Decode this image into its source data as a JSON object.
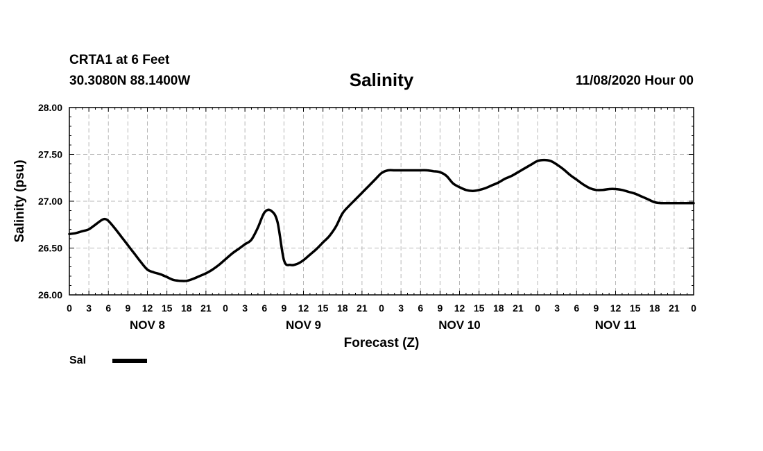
{
  "header": {
    "station": "CRTA1 at 6 Feet",
    "coords": "30.3080N 88.1400W",
    "datetime": "11/08/2020 Hour 00"
  },
  "chart_data": {
    "type": "line",
    "title": "Salinity",
    "xlabel": "Forecast (Z)",
    "ylabel": "Salinity (psu)",
    "ylim": [
      26.0,
      28.0
    ],
    "xlim_hours": [
      0,
      96
    ],
    "y_ticks": [
      "26.00",
      "26.50",
      "27.00",
      "27.50",
      "28.00"
    ],
    "y_tick_values": [
      26.0,
      26.5,
      27.0,
      27.5,
      28.0
    ],
    "x_tick_labels": [
      "0",
      "3",
      "6",
      "9",
      "12",
      "15",
      "18",
      "21",
      "0",
      "3",
      "6",
      "9",
      "12",
      "15",
      "18",
      "21",
      "0",
      "3",
      "6",
      "9",
      "12",
      "15",
      "18",
      "21",
      "0",
      "3",
      "6",
      "9",
      "12",
      "15",
      "18",
      "21",
      "0"
    ],
    "day_labels": [
      {
        "text": "NOV 8",
        "hour": 12
      },
      {
        "text": "NOV 9",
        "hour": 36
      },
      {
        "text": "NOV 10",
        "hour": 60
      },
      {
        "text": "NOV 11",
        "hour": 84
      }
    ],
    "grid": true,
    "legend": "bottom-left",
    "series": [
      {
        "name": "Sal",
        "color": "#000000",
        "x": [
          0,
          1,
          2,
          3,
          4,
          5,
          5.5,
          6,
          7,
          8,
          9,
          10,
          11,
          12,
          13,
          14,
          15,
          16,
          17,
          18,
          19,
          20,
          21,
          22,
          23,
          24,
          25,
          26,
          27,
          28,
          29,
          30,
          31,
          32,
          33,
          34,
          35,
          36,
          37,
          38,
          39,
          40,
          41,
          42,
          43,
          44,
          45,
          46,
          47,
          48,
          49,
          50,
          51,
          52,
          53,
          54,
          55,
          56,
          57,
          58,
          59,
          60,
          61,
          62,
          63,
          64,
          65,
          66,
          67,
          68,
          69,
          70,
          71,
          72,
          73,
          74,
          75,
          76,
          77,
          78,
          79,
          80,
          81,
          82,
          83,
          84,
          85,
          86,
          87,
          88,
          89,
          90,
          91,
          92,
          93,
          94,
          95,
          96
        ],
        "values": [
          26.65,
          26.66,
          26.68,
          26.7,
          26.75,
          26.8,
          26.81,
          26.79,
          26.71,
          26.62,
          26.53,
          26.44,
          26.35,
          26.27,
          26.24,
          26.22,
          26.19,
          26.16,
          26.15,
          26.15,
          26.17,
          26.2,
          26.23,
          26.27,
          26.32,
          26.38,
          26.44,
          26.49,
          26.54,
          26.59,
          26.72,
          26.88,
          26.9,
          26.78,
          26.37,
          26.32,
          26.33,
          26.37,
          26.43,
          26.49,
          26.56,
          26.63,
          26.73,
          26.87,
          26.95,
          27.02,
          27.09,
          27.16,
          27.23,
          27.3,
          27.33,
          27.33,
          27.33,
          27.33,
          27.33,
          27.33,
          27.33,
          27.32,
          27.31,
          27.27,
          27.19,
          27.15,
          27.12,
          27.11,
          27.12,
          27.14,
          27.17,
          27.2,
          27.24,
          27.27,
          27.31,
          27.35,
          27.39,
          27.43,
          27.44,
          27.43,
          27.39,
          27.34,
          27.28,
          27.23,
          27.18,
          27.14,
          27.12,
          27.12,
          27.13,
          27.13,
          27.12,
          27.1,
          27.08,
          27.05,
          27.02,
          26.99,
          26.98,
          26.98,
          26.98,
          26.98,
          26.98,
          26.98
        ]
      }
    ]
  }
}
